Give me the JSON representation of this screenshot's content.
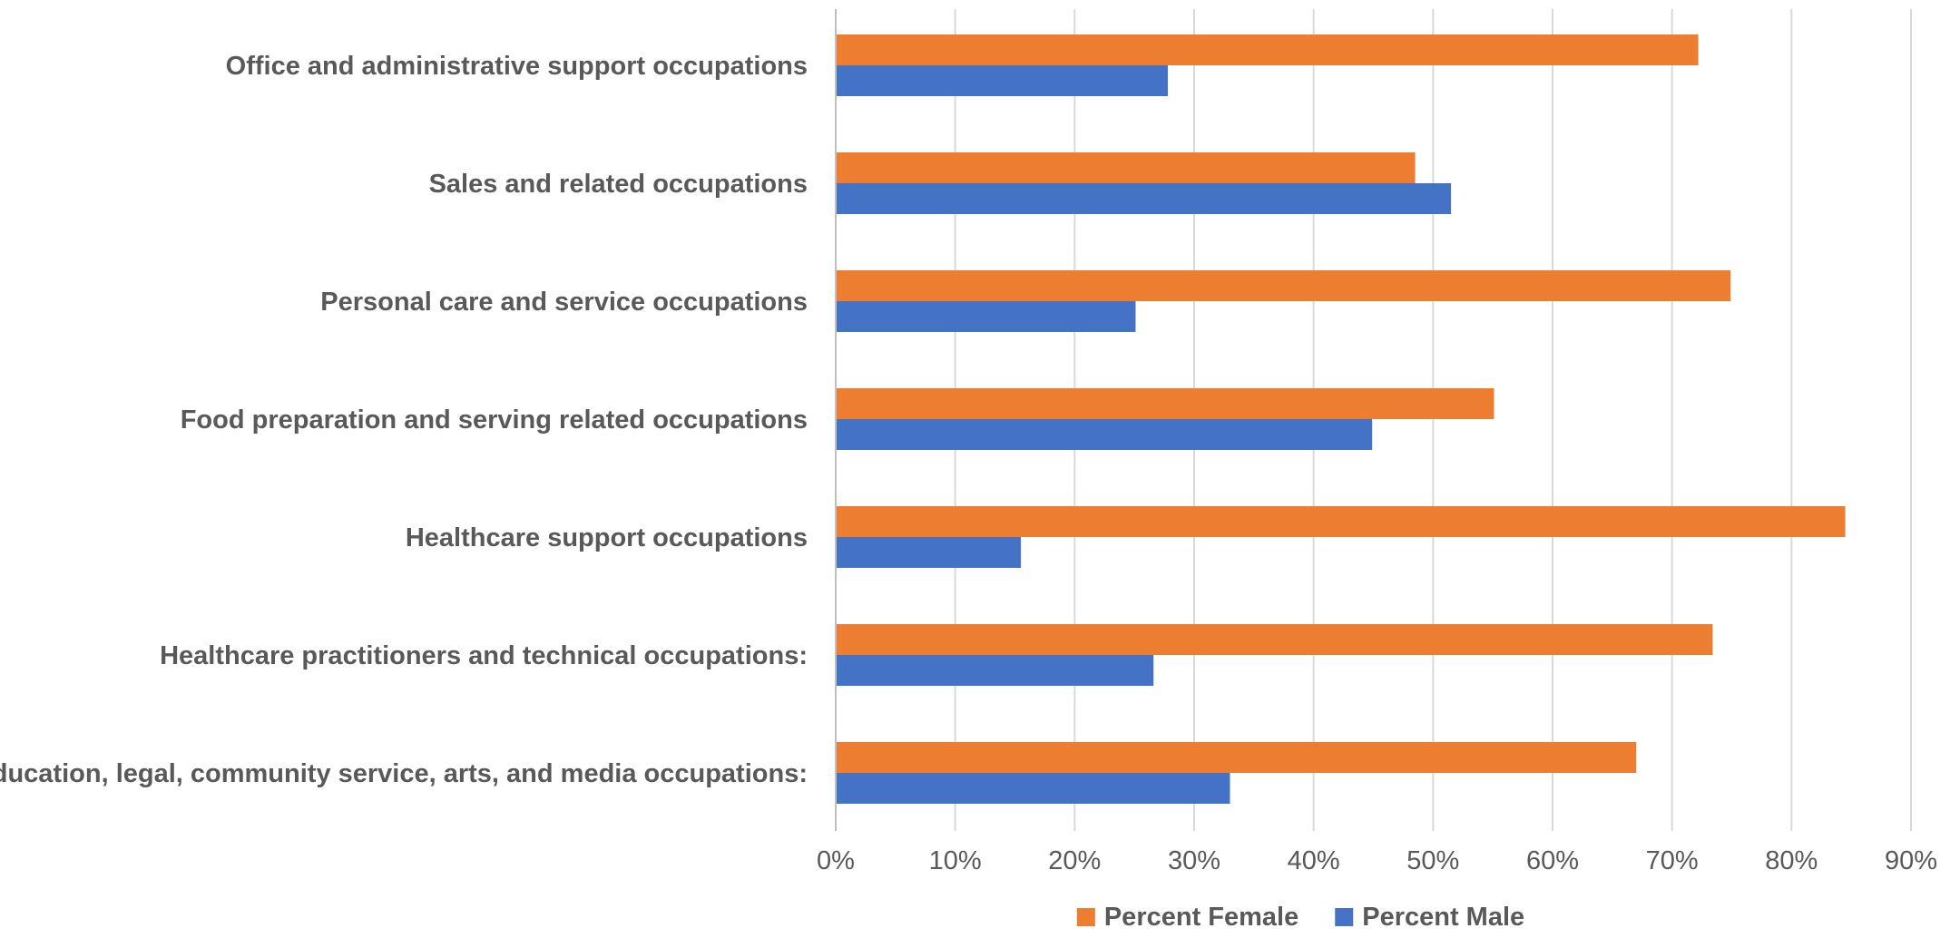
{
  "chart_data": {
    "type": "bar",
    "orientation": "horizontal",
    "title": "",
    "xlabel": "",
    "ylabel": "",
    "categories": [
      "Office and administrative support occupations",
      "Sales and related occupations",
      "Personal care and service occupations",
      "Food preparation and serving related occupations",
      "Healthcare support occupations",
      "Healthcare practitioners and technical occupations:",
      "Education, legal, community service, arts, and media occupations:"
    ],
    "series": [
      {
        "name": "Percent Female",
        "color": "#ED7D31",
        "values": [
          72.2,
          48.5,
          74.9,
          55.1,
          84.5,
          73.4,
          67.0
        ]
      },
      {
        "name": "Percent Male",
        "color": "#4472C4",
        "values": [
          27.8,
          51.5,
          25.1,
          44.9,
          15.5,
          26.6,
          33.0
        ]
      }
    ],
    "xlim": [
      0,
      90
    ],
    "x_ticks": [
      0,
      10,
      20,
      30,
      40,
      50,
      60,
      70,
      80,
      90
    ],
    "tick_format": "percent",
    "tick_suffix": "%",
    "grid": true,
    "grid_color": "#D9D9D9",
    "axis_color": "#BFBFBF",
    "text_color": "#595959",
    "legend_position": "bottom"
  }
}
